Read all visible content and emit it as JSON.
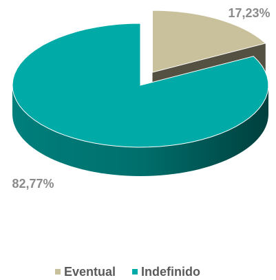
{
  "chart_data": {
    "type": "pie",
    "categories": [
      "Eventual",
      "Indefinido"
    ],
    "values": [
      17.23,
      82.77
    ],
    "value_labels": [
      "17,23%",
      "82,77%"
    ],
    "colors": [
      "#c8c19c",
      "#00aaa6"
    ],
    "legend": "bottom"
  }
}
